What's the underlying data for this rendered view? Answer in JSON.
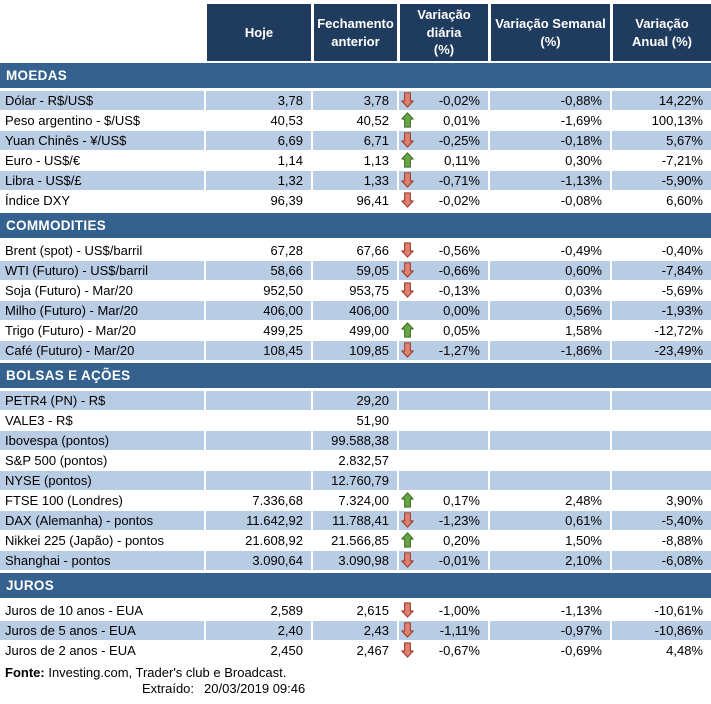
{
  "colors": {
    "header_bg": "#1F3B5D",
    "section_bg": "#34618E",
    "shaded_row_bg": "#B8CCE4",
    "up_arrow_fill": "#67A644",
    "up_arrow_border": "#3F6B21",
    "down_arrow_fill": "#E08070",
    "down_arrow_border": "#9E3B2B"
  },
  "footer": {
    "fonte_label": "Fonte:",
    "fonte_text": " Investing.com, Trader's club e Broadcast.",
    "extraido_label": "Extraído:",
    "extraido_value": "20/03/2019 09:46"
  },
  "chart_data": {
    "type": "table",
    "columns": [
      "",
      "Hoje",
      "Fechamento\nanterior",
      "Variação diária\n(%)",
      "Variação Semanal\n(%)",
      "Variação\nAnual (%)"
    ],
    "sections": [
      {
        "title": "MOEDAS",
        "rows": [
          {
            "label": "Dólar - R$/US$",
            "hoje": "3,78",
            "fechamento": "3,78",
            "arrow": "down",
            "diaria": "-0,02%",
            "semanal": "-0,88%",
            "anual": "14,22%"
          },
          {
            "label": "Peso argentino - $/US$",
            "hoje": "40,53",
            "fechamento": "40,52",
            "arrow": "up",
            "diaria": "0,01%",
            "semanal": "-1,69%",
            "anual": "100,13%"
          },
          {
            "label": "Yuan Chinês - ¥/US$",
            "hoje": "6,69",
            "fechamento": "6,71",
            "arrow": "down",
            "diaria": "-0,25%",
            "semanal": "-0,18%",
            "anual": "5,67%"
          },
          {
            "label": "Euro - US$/€",
            "hoje": "1,14",
            "fechamento": "1,13",
            "arrow": "up",
            "diaria": "0,11%",
            "semanal": "0,30%",
            "anual": "-7,21%"
          },
          {
            "label": "Libra - US$/£",
            "hoje": "1,32",
            "fechamento": "1,33",
            "arrow": "down",
            "diaria": "-0,71%",
            "semanal": "-1,13%",
            "anual": "-5,90%"
          },
          {
            "label": "Índice DXY",
            "hoje": "96,39",
            "fechamento": "96,41",
            "arrow": "down",
            "diaria": "-0,02%",
            "semanal": "-0,08%",
            "anual": "6,60%"
          }
        ]
      },
      {
        "title": "COMMODITIES",
        "rows": [
          {
            "label": "Brent (spot) - US$/barril",
            "hoje": "67,28",
            "fechamento": "67,66",
            "arrow": "down",
            "diaria": "-0,56%",
            "semanal": "-0,49%",
            "anual": "-0,40%"
          },
          {
            "label": "WTI (Futuro) - US$/barril",
            "hoje": "58,66",
            "fechamento": "59,05",
            "arrow": "down",
            "diaria": "-0,66%",
            "semanal": "0,60%",
            "anual": "-7,84%"
          },
          {
            "label": "Soja (Futuro) - Mar/20",
            "hoje": "952,50",
            "fechamento": "953,75",
            "arrow": "down",
            "diaria": "-0,13%",
            "semanal": "0,03%",
            "anual": "-5,69%"
          },
          {
            "label": "Milho (Futuro) - Mar/20",
            "hoje": "406,00",
            "fechamento": "406,00",
            "arrow": "none",
            "diaria": "0,00%",
            "semanal": "0,56%",
            "anual": "-1,93%"
          },
          {
            "label": "Trigo (Futuro) - Mar/20",
            "hoje": "499,25",
            "fechamento": "499,00",
            "arrow": "up",
            "diaria": "0,05%",
            "semanal": "1,58%",
            "anual": "-12,72%"
          },
          {
            "label": "Café (Futuro) - Mar/20",
            "hoje": "108,45",
            "fechamento": "109,85",
            "arrow": "down",
            "diaria": "-1,27%",
            "semanal": "-1,86%",
            "anual": "-23,49%"
          }
        ]
      },
      {
        "title": "BOLSAS E AÇÕES",
        "rows": [
          {
            "label": "PETR4 (PN) - R$",
            "hoje": "",
            "fechamento": "29,20",
            "arrow": "none",
            "diaria": "",
            "semanal": "",
            "anual": ""
          },
          {
            "label": "VALE3 - R$",
            "hoje": "",
            "fechamento": "51,90",
            "arrow": "none",
            "diaria": "",
            "semanal": "",
            "anual": ""
          },
          {
            "label": "Ibovespa (pontos)",
            "hoje": "",
            "fechamento": "99.588,38",
            "arrow": "none",
            "diaria": "",
            "semanal": "",
            "anual": ""
          },
          {
            "label": "S&P 500 (pontos)",
            "hoje": "",
            "fechamento": "2.832,57",
            "arrow": "none",
            "diaria": "",
            "semanal": "",
            "anual": ""
          },
          {
            "label": "NYSE (pontos)",
            "hoje": "",
            "fechamento": "12.760,79",
            "arrow": "none",
            "diaria": "",
            "semanal": "",
            "anual": ""
          },
          {
            "label": "FTSE 100 (Londres)",
            "hoje": "7.336,68",
            "fechamento": "7.324,00",
            "arrow": "up",
            "diaria": "0,17%",
            "semanal": "2,48%",
            "anual": "3,90%"
          },
          {
            "label": "DAX (Alemanha) - pontos",
            "hoje": "11.642,92",
            "fechamento": "11.788,41",
            "arrow": "down",
            "diaria": "-1,23%",
            "semanal": "0,61%",
            "anual": "-5,40%"
          },
          {
            "label": "Nikkei 225 (Japão) - pontos",
            "hoje": "21.608,92",
            "fechamento": "21.566,85",
            "arrow": "up",
            "diaria": "0,20%",
            "semanal": "1,50%",
            "anual": "-8,88%"
          },
          {
            "label": "Shanghai - pontos",
            "hoje": "3.090,64",
            "fechamento": "3.090,98",
            "arrow": "down",
            "diaria": "-0,01%",
            "semanal": "2,10%",
            "anual": "-6,08%"
          }
        ]
      },
      {
        "title": "JUROS",
        "rows": [
          {
            "label": "Juros de 10 anos - EUA",
            "hoje": "2,589",
            "fechamento": "2,615",
            "arrow": "down",
            "diaria": "-1,00%",
            "semanal": "-1,13%",
            "anual": "-10,61%"
          },
          {
            "label": "Juros de 5 anos - EUA",
            "hoje": "2,40",
            "fechamento": "2,43",
            "arrow": "down",
            "diaria": "-1,11%",
            "semanal": "-0,97%",
            "anual": "-10,86%"
          },
          {
            "label": "Juros de 2 anos - EUA",
            "hoje": "2,450",
            "fechamento": "2,467",
            "arrow": "down",
            "diaria": "-0,67%",
            "semanal": "-0,69%",
            "anual": "4,48%"
          }
        ]
      }
    ]
  }
}
